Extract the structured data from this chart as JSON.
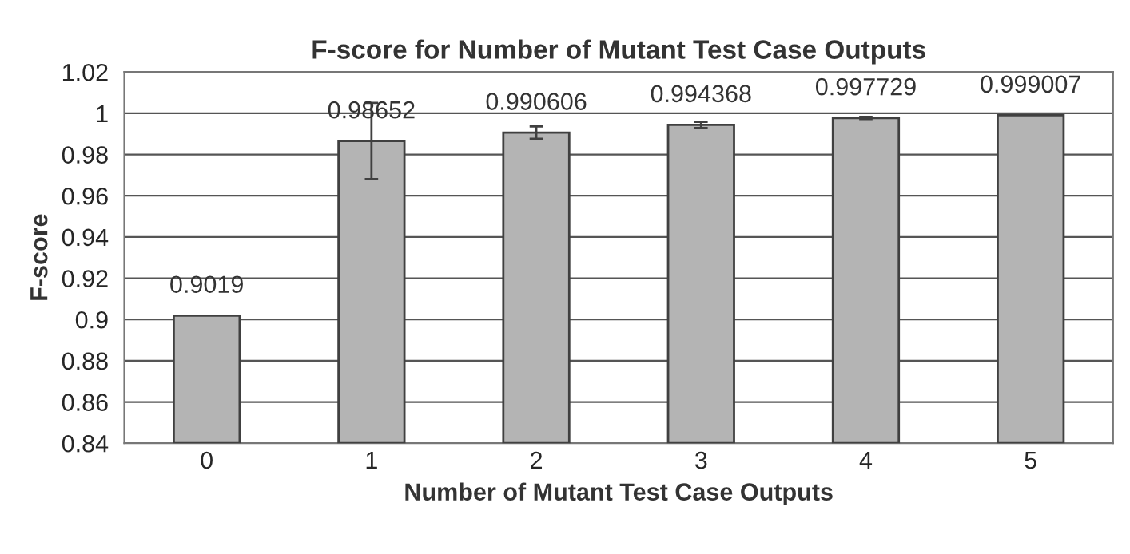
{
  "chart_data": {
    "type": "bar",
    "title": "F-score for Number of Mutant Test Case Outputs",
    "xlabel": "Number of Mutant Test Case Outputs",
    "ylabel": "F-score",
    "categories": [
      "0",
      "1",
      "2",
      "3",
      "4",
      "5"
    ],
    "values": [
      0.9019,
      0.98652,
      0.990606,
      0.994368,
      0.997729,
      0.999007
    ],
    "errors": [
      null,
      0.0185,
      0.003,
      0.0015,
      0.0005,
      null
    ],
    "color": "#b4b4b4",
    "data_labels": true,
    "grid": "y",
    "ylim": [
      0.84,
      1.02
    ],
    "yticks": [
      0.84,
      0.86,
      0.88,
      0.9,
      0.92,
      0.94,
      0.96,
      0.98,
      1,
      1.02
    ]
  }
}
